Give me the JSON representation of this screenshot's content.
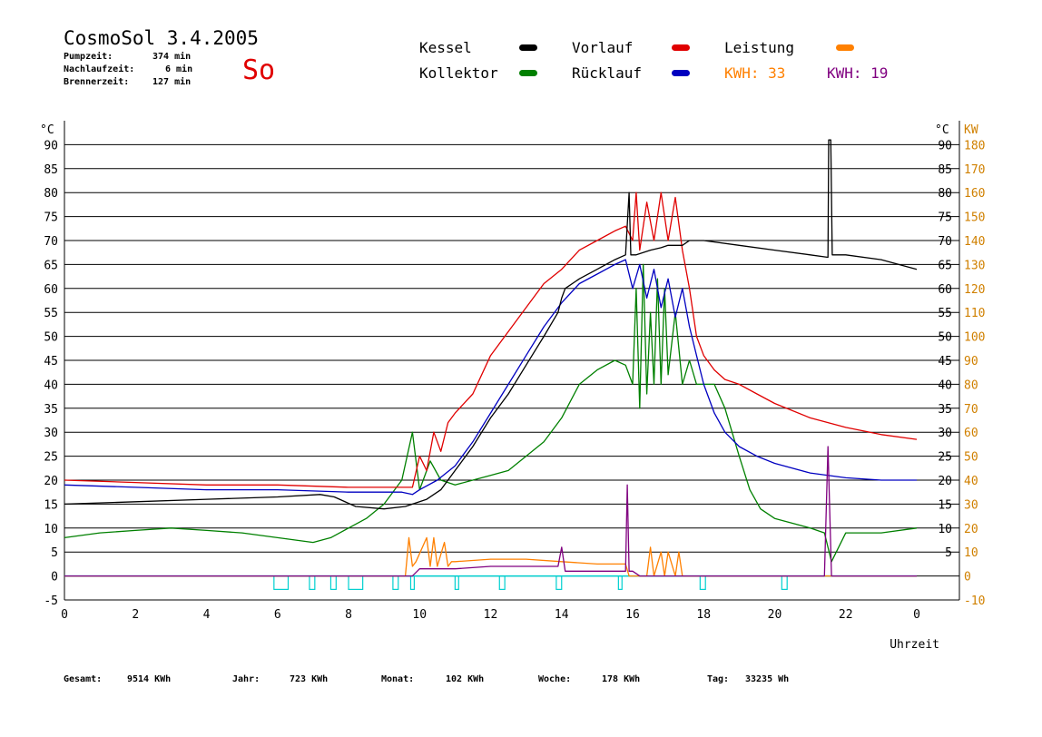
{
  "header": {
    "title": "CosmoSol 3.4.2005",
    "day_label": "So",
    "info": [
      {
        "label": "Pumpzeit:",
        "value": "374 min"
      },
      {
        "label": "Nachlaufzeit:",
        "value": "6 min"
      },
      {
        "label": "Brennerzeit:",
        "value": "127 min"
      }
    ]
  },
  "legend": {
    "kessel": "Kessel",
    "kollektor": "Kollektor",
    "vorlauf": "Vorlauf",
    "ruecklauf": "Rücklauf",
    "leistung": "Leistung",
    "kwh1_label": "KWH:",
    "kwh1_value": "33",
    "kwh2_label": "KWH:",
    "kwh2_value": "19"
  },
  "footer": [
    {
      "label": "Gesamt:",
      "value": "9514 KWh"
    },
    {
      "label": "Jahr:",
      "value": "723 KWh"
    },
    {
      "label": "Monat:",
      "value": "102 KWh"
    },
    {
      "label": "Woche:",
      "value": "178 KWh"
    },
    {
      "label": "Tag:",
      "value": "33235 Wh"
    }
  ],
  "colors": {
    "kessel": "#000000",
    "kollektor": "#008000",
    "vorlauf": "#e00000",
    "ruecklauf": "#0000c0",
    "leistung": "#ff8000",
    "kwh2": "#800080",
    "pump": "#00d0d0",
    "kw_axis": "#d08000"
  },
  "chart_data": {
    "type": "line",
    "xlabel": "Uhrzeit",
    "left_unit": "°C",
    "right_unit_c": "°C",
    "right_unit_kw": "KW",
    "xlim": [
      0,
      24
    ],
    "ylim": [
      -5,
      95
    ],
    "x_ticks": [
      "0",
      "2",
      "4",
      "6",
      "8",
      "10",
      "12",
      "14",
      "16",
      "18",
      "20",
      "22",
      "0"
    ],
    "y_ticks": [
      -5,
      0,
      5,
      10,
      15,
      20,
      25,
      30,
      35,
      40,
      45,
      50,
      55,
      60,
      65,
      70,
      75,
      80,
      85,
      90
    ],
    "kw_ticks": [
      -10,
      0,
      10,
      20,
      30,
      40,
      50,
      60,
      70,
      80,
      90,
      100,
      110,
      120,
      130,
      140,
      150,
      160,
      170,
      180
    ],
    "grid": true,
    "series": [
      {
        "name": "Kessel",
        "key": "kessel",
        "x": [
          0,
          2,
          4,
          6,
          7.2,
          7.6,
          8.2,
          9.0,
          9.6,
          9.8,
          10.2,
          10.6,
          11,
          11.5,
          12,
          12.5,
          13,
          13.5,
          13.9,
          14,
          14.1,
          14.5,
          15,
          15.5,
          15.8,
          15.9,
          15.95,
          16.1,
          16.5,
          16.8,
          17,
          17.4,
          17.6,
          18,
          19,
          20,
          21,
          21.5,
          21.52,
          21.58,
          21.62,
          22,
          23,
          24
        ],
        "y": [
          15,
          15.5,
          16,
          16.5,
          17,
          16.5,
          14.5,
          14,
          14.5,
          15,
          16,
          18,
          22,
          27,
          33,
          38,
          44,
          50,
          55,
          58,
          60,
          62,
          64,
          66,
          67,
          80,
          67,
          67,
          68,
          68.5,
          69,
          69,
          70,
          70,
          69,
          68,
          67,
          66.5,
          91,
          91,
          67,
          67,
          66,
          64
        ]
      },
      {
        "name": "Kollektor",
        "key": "kollektor",
        "x": [
          0,
          1,
          2,
          3,
          4,
          5,
          6,
          7,
          7.5,
          8,
          8.5,
          9,
          9.5,
          9.8,
          10,
          10.3,
          10.6,
          11,
          11.5,
          12,
          12.5,
          13,
          13.5,
          14,
          14.5,
          15,
          15.5,
          15.8,
          16,
          16.1,
          16.2,
          16.3,
          16.4,
          16.5,
          16.6,
          16.7,
          16.8,
          16.9,
          17,
          17.2,
          17.4,
          17.6,
          17.8,
          18,
          18.3,
          18.6,
          19,
          19.3,
          19.6,
          20,
          20.5,
          21,
          21.4,
          21.6,
          22,
          23,
          24
        ],
        "y": [
          8,
          9,
          9.5,
          10,
          9.5,
          9,
          8,
          7,
          8,
          10,
          12,
          15,
          20,
          30,
          18,
          24,
          20,
          19,
          20,
          21,
          22,
          25,
          28,
          33,
          40,
          43,
          45,
          44,
          40,
          60,
          35,
          65,
          38,
          55,
          40,
          62,
          40,
          60,
          42,
          55,
          40,
          45,
          40,
          40,
          40,
          35,
          25,
          18,
          14,
          12,
          11,
          10,
          9,
          3,
          9,
          9,
          10
        ]
      },
      {
        "name": "Vorlauf",
        "key": "vorlauf",
        "x": [
          0,
          2,
          4,
          6,
          8,
          9.5,
          9.8,
          10,
          10.2,
          10.4,
          10.6,
          10.8,
          11,
          11.5,
          12,
          12.5,
          13,
          13.5,
          14,
          14.5,
          15,
          15.5,
          15.8,
          16,
          16.1,
          16.2,
          16.4,
          16.6,
          16.8,
          17,
          17.2,
          17.4,
          17.6,
          17.8,
          18,
          18.3,
          18.6,
          19,
          19.5,
          20,
          21,
          22,
          23,
          24
        ],
        "y": [
          20,
          19.5,
          19,
          19,
          18.5,
          18.5,
          18.5,
          25,
          22,
          30,
          26,
          32,
          34,
          38,
          46,
          51,
          56,
          61,
          64,
          68,
          70,
          72,
          73,
          70,
          80,
          68,
          78,
          70,
          80,
          70,
          79,
          68,
          60,
          50,
          46,
          43,
          41,
          40,
          38,
          36,
          33,
          31,
          29.5,
          28.5
        ]
      },
      {
        "name": "Rücklauf",
        "key": "ruecklauf",
        "x": [
          0,
          2,
          4,
          6,
          8,
          9.5,
          9.8,
          10,
          10.5,
          11,
          11.5,
          12,
          12.5,
          13,
          13.5,
          14,
          14.5,
          15,
          15.5,
          15.8,
          16,
          16.2,
          16.4,
          16.6,
          16.8,
          17,
          17.2,
          17.4,
          17.6,
          17.8,
          18,
          18.3,
          18.6,
          19,
          19.5,
          20,
          21,
          22,
          23,
          24
        ],
        "y": [
          19,
          18.5,
          18,
          18,
          17.5,
          17.5,
          17,
          18,
          20,
          23,
          28,
          34,
          40,
          46,
          52,
          57,
          61,
          63,
          65,
          66,
          60,
          65,
          58,
          64,
          56,
          62,
          54,
          60,
          52,
          46,
          40,
          34,
          30,
          27,
          25,
          23.5,
          21.5,
          20.5,
          20,
          20
        ]
      },
      {
        "name": "Leistung",
        "key": "leistung",
        "x": [
          0,
          9.6,
          9.7,
          9.8,
          9.9,
          10.2,
          10.3,
          10.4,
          10.5,
          10.7,
          10.8,
          10.9,
          11,
          12,
          13,
          14,
          15,
          15.8,
          15.9,
          16,
          16.1,
          16.4,
          16.5,
          16.6,
          16.8,
          16.9,
          17,
          17.2,
          17.3,
          17.4,
          17.5,
          24
        ],
        "y": [
          0,
          0,
          8,
          2,
          3,
          8,
          2,
          8,
          2,
          7,
          2,
          3,
          3,
          3.5,
          3.5,
          3,
          2.5,
          2.5,
          0,
          0,
          0,
          0,
          6,
          0,
          5,
          0,
          5,
          0,
          5,
          0,
          0,
          0
        ]
      },
      {
        "name": "KWH 19",
        "key": "kwh2",
        "x": [
          0,
          9.8,
          10,
          10.5,
          11,
          12,
          13,
          13.9,
          14,
          14.1,
          14.5,
          15,
          15.8,
          15.85,
          15.9,
          16,
          16.2,
          17,
          17.5,
          21.4,
          21.5,
          21.6,
          24
        ],
        "y": [
          0,
          0,
          1.5,
          1.5,
          1.5,
          2,
          2,
          2,
          6,
          1,
          1,
          1,
          1,
          19,
          1,
          1,
          0,
          0,
          0,
          0,
          27,
          0,
          0
        ]
      }
    ],
    "pump_pulses": [
      [
        5.9,
        6.3
      ],
      [
        6.9,
        7.05
      ],
      [
        7.5,
        7.65
      ],
      [
        8.0,
        8.4
      ],
      [
        9.25,
        9.4
      ],
      [
        9.75,
        9.85
      ],
      [
        11.0,
        11.1
      ],
      [
        12.25,
        12.4
      ],
      [
        13.85,
        14.0
      ],
      [
        15.6,
        15.7
      ],
      [
        17.9,
        18.05
      ],
      [
        20.2,
        20.35
      ]
    ]
  }
}
